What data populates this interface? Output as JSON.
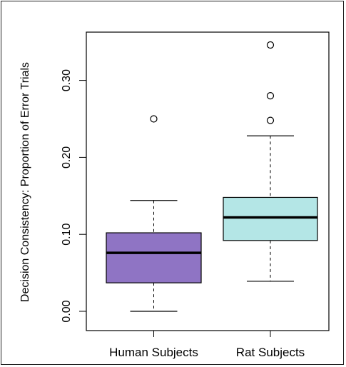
{
  "chart_data": {
    "type": "box",
    "ylabel": "Decision Consistency: Proportion of Error Trials",
    "ylim": [
      0.0,
      0.35
    ],
    "yticks": [
      0.0,
      0.1,
      0.2,
      0.3
    ],
    "ytick_labels": [
      "0.00",
      "0.10",
      "0.20",
      "0.30"
    ],
    "grid": false,
    "categories": [
      "Human Subjects",
      "Rat Subjects"
    ],
    "boxes": [
      {
        "category": "Human Subjects",
        "color": "#8f74c4",
        "whisker_low": 0.0,
        "q1": 0.037,
        "median": 0.076,
        "q3": 0.102,
        "whisker_high": 0.144,
        "outliers": [
          0.25
        ]
      },
      {
        "category": "Rat Subjects",
        "color": "#b4e6e6",
        "whisker_low": 0.039,
        "q1": 0.092,
        "median": 0.122,
        "q3": 0.148,
        "whisker_high": 0.228,
        "outliers": [
          0.248,
          0.28,
          0.346
        ]
      }
    ]
  }
}
